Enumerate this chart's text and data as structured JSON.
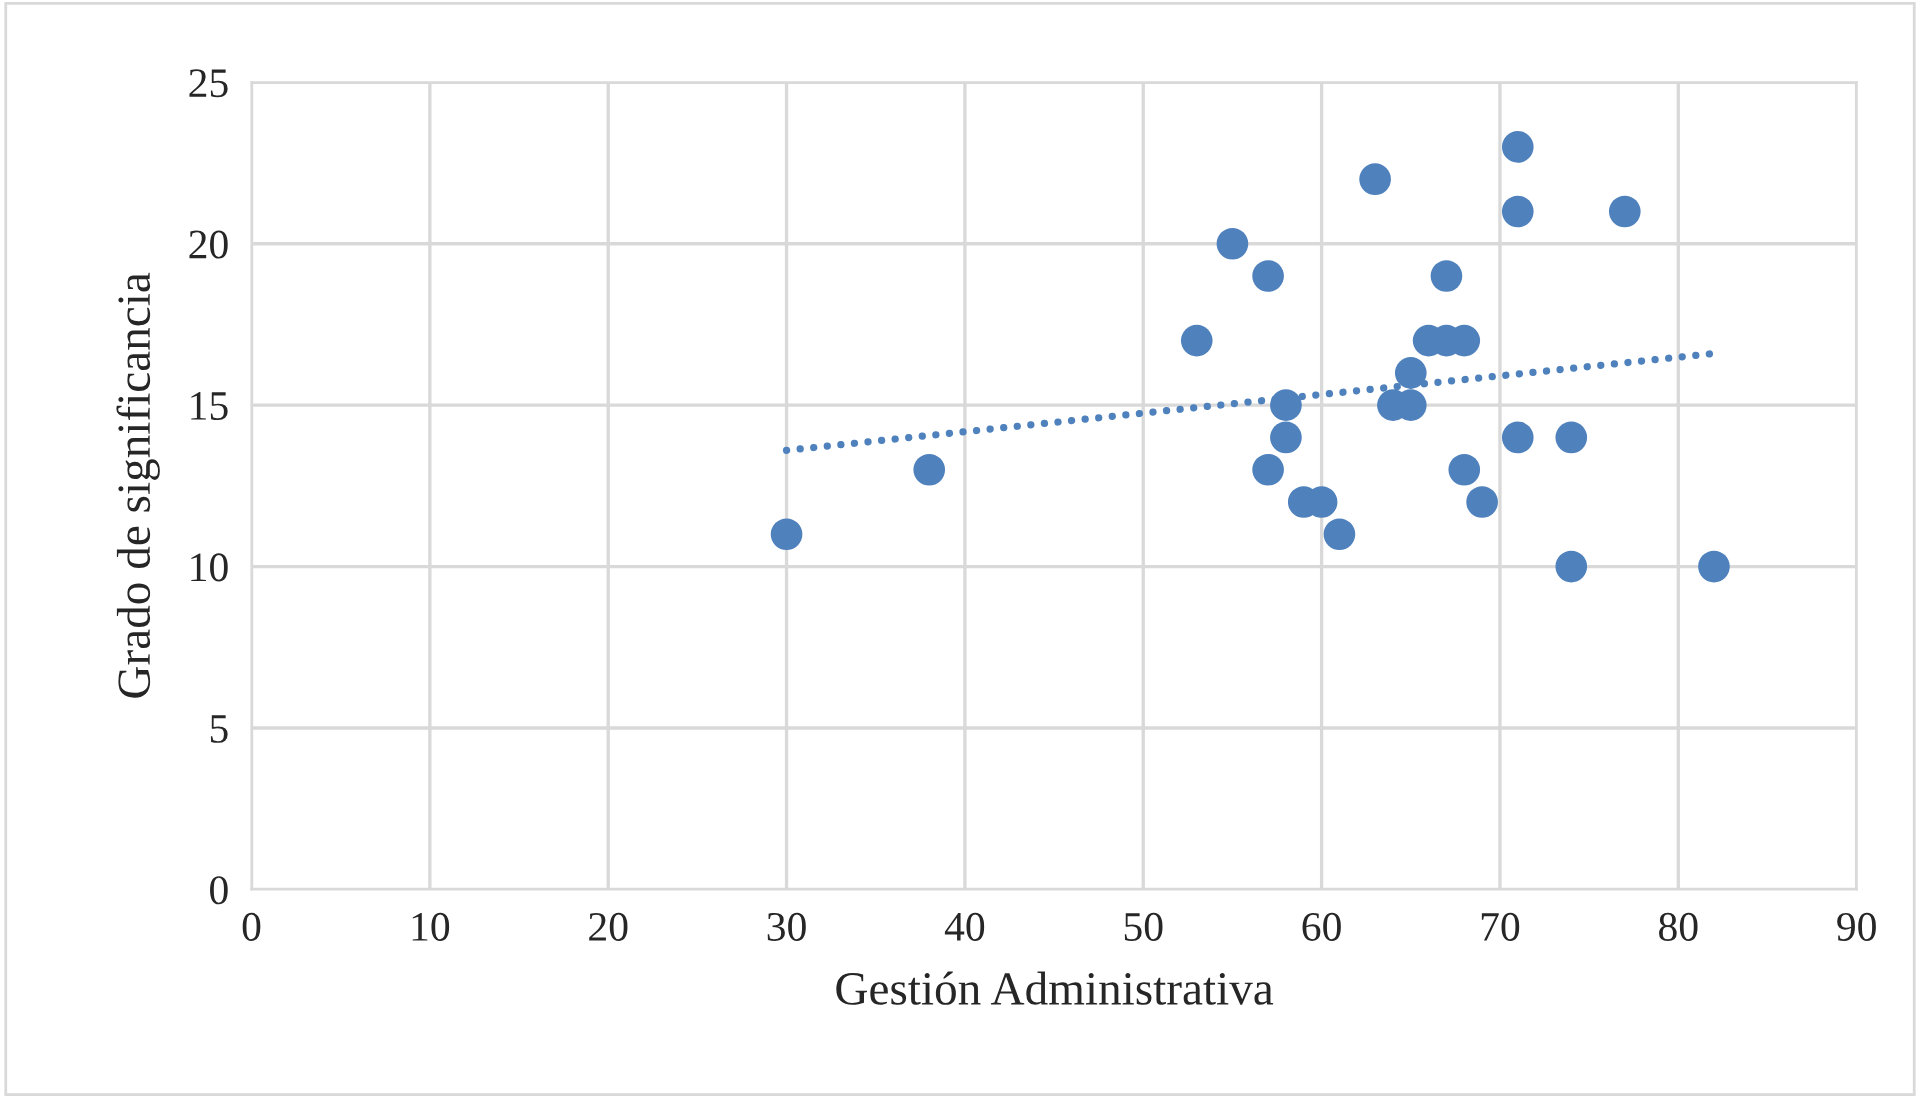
{
  "chart_data": {
    "type": "scatter",
    "xlabel": "Gestión Administrativa",
    "ylabel": "Grado de significancia",
    "xlim": [
      0,
      90
    ],
    "xticks": [
      0,
      10,
      20,
      30,
      40,
      50,
      60,
      70,
      80,
      90
    ],
    "ylim": [
      0,
      25
    ],
    "yticks": [
      0,
      5,
      10,
      15,
      20,
      25
    ],
    "grid": true,
    "series": [
      {
        "color": "#4f81bd",
        "marker": "circle",
        "x": [
          30,
          38,
          53,
          55,
          57,
          57,
          58,
          58,
          59,
          60,
          61,
          63,
          64,
          65,
          65,
          66,
          67,
          68,
          67,
          68,
          69,
          71,
          71,
          71,
          74,
          74,
          77,
          82
        ],
        "values": [
          11,
          13,
          17,
          20,
          19,
          13,
          15,
          14,
          12,
          12,
          11,
          22,
          15,
          15,
          16,
          17,
          17,
          17,
          19,
          13,
          12,
          23,
          21,
          14,
          14,
          10,
          21,
          10
        ]
      },
      {
        "type": "line",
        "color": "#4f81bd",
        "line_style": "dotted",
        "marker": "none",
        "x": [
          30,
          82
        ],
        "values": [
          13.6,
          16.6
        ]
      }
    ]
  }
}
